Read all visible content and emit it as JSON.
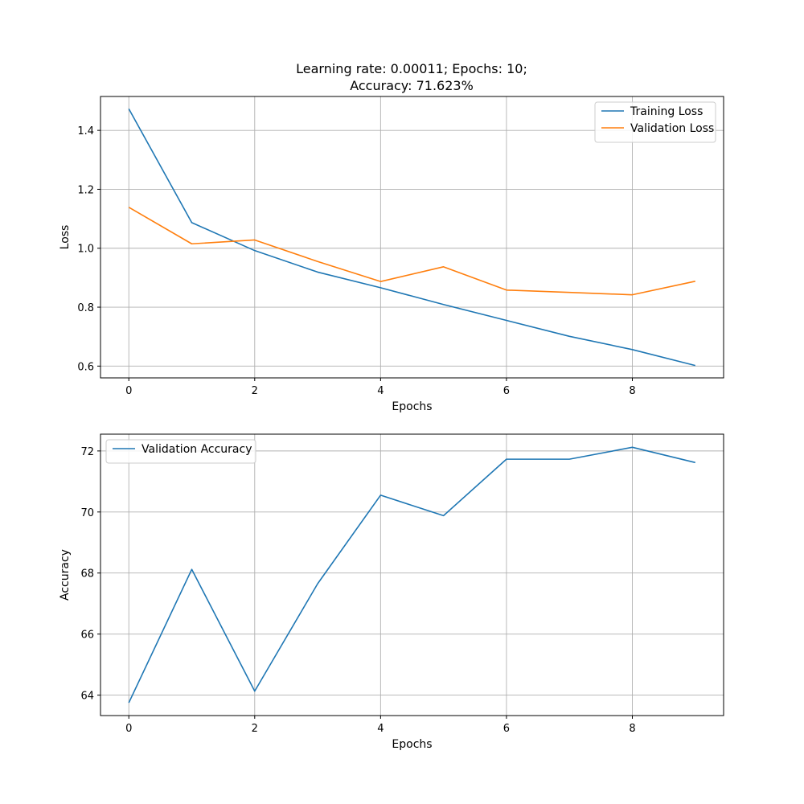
{
  "title_lines": [
    "Learning rate: 0.00011; Epochs: 10;",
    "Accuracy: 71.623%"
  ],
  "colors": {
    "training": "#1f77b4",
    "validation": "#ff7f0e",
    "grid": "#b0b0b0",
    "axes": "#000000"
  },
  "chart_data": [
    {
      "type": "line",
      "xlabel": "Epochs",
      "ylabel": "Loss",
      "x": [
        0,
        1,
        2,
        3,
        4,
        5,
        6,
        7,
        8,
        9
      ],
      "xlim": [
        -0.45,
        9.45
      ],
      "ylim": [
        0.56,
        1.515
      ],
      "xticks": [
        0,
        2,
        4,
        6,
        8
      ],
      "yticks": [
        0.6,
        0.8,
        1.0,
        1.2,
        1.4
      ],
      "ytick_labels": [
        "0.6",
        "0.8",
        "1.0",
        "1.2",
        "1.4"
      ],
      "grid": true,
      "legend_position": "top-right",
      "series": [
        {
          "name": "Training Loss",
          "color": "#1f77b4",
          "values": [
            1.473,
            1.087,
            0.992,
            0.919,
            0.866,
            0.809,
            0.755,
            0.701,
            0.656,
            0.602
          ]
        },
        {
          "name": "Validation Loss",
          "color": "#ff7f0e",
          "values": [
            1.139,
            1.015,
            1.028,
            0.955,
            0.887,
            0.937,
            0.858,
            0.85,
            0.842,
            0.888
          ]
        }
      ]
    },
    {
      "type": "line",
      "xlabel": "Epochs",
      "ylabel": "Accuracy",
      "x": [
        0,
        1,
        2,
        3,
        4,
        5,
        6,
        7,
        8,
        9
      ],
      "xlim": [
        -0.45,
        9.45
      ],
      "ylim": [
        63.33,
        72.55
      ],
      "xticks": [
        0,
        2,
        4,
        6,
        8
      ],
      "yticks": [
        64,
        66,
        68,
        70,
        72
      ],
      "ytick_labels": [
        "64",
        "66",
        "68",
        "70",
        "72"
      ],
      "grid": true,
      "legend_position": "top-left",
      "series": [
        {
          "name": "Validation Accuracy",
          "color": "#1f77b4",
          "values": [
            63.75,
            68.12,
            64.13,
            67.65,
            70.55,
            69.88,
            71.73,
            71.73,
            72.12,
            71.62
          ]
        }
      ]
    }
  ]
}
